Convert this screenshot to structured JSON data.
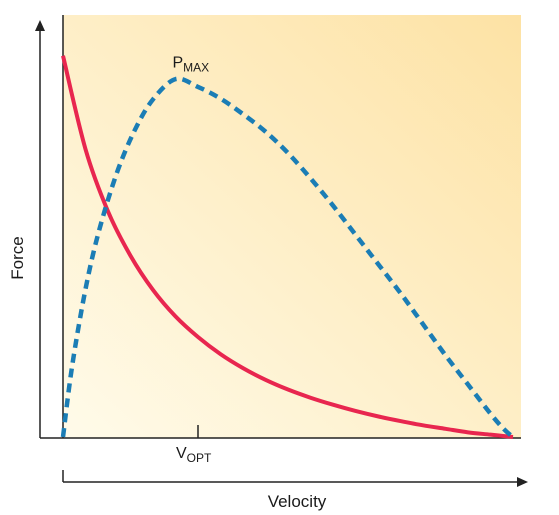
{
  "chart_data": {
    "type": "line",
    "xlabel": "Velocity",
    "ylabel": "Force",
    "x_ticks": [
      {
        "value": 0.3,
        "label_main": "V",
        "label_sub": "OPT"
      }
    ],
    "xlim": [
      0,
      1
    ],
    "ylim": [
      0,
      1
    ],
    "grid": false,
    "series": [
      {
        "style": "solid",
        "color": "#e8264f",
        "x": [
          0,
          0.05,
          0.1,
          0.15,
          0.2,
          0.25,
          0.3,
          0.35,
          0.4,
          0.45,
          0.5,
          0.55,
          0.6,
          0.65,
          0.7,
          0.75,
          0.8,
          0.85,
          0.9,
          0.95,
          1.0
        ],
        "y": [
          0.98,
          0.74,
          0.58,
          0.466,
          0.378,
          0.31,
          0.257,
          0.213,
          0.177,
          0.147,
          0.122,
          0.101,
          0.083,
          0.067,
          0.053,
          0.041,
          0.03,
          0.021,
          0.012,
          0.006,
          0.0
        ]
      },
      {
        "style": "dashed",
        "color": "#1b7db5",
        "x": [
          0,
          0.02,
          0.05,
          0.08,
          0.12,
          0.16,
          0.2,
          0.25,
          0.3,
          0.35,
          0.4,
          0.45,
          0.5,
          0.55,
          0.6,
          0.65,
          0.7,
          0.75,
          0.8,
          0.85,
          0.9,
          0.95,
          0.98,
          1.0
        ],
        "y": [
          0.0,
          0.18,
          0.38,
          0.53,
          0.68,
          0.79,
          0.868,
          0.92,
          0.9,
          0.87,
          0.83,
          0.785,
          0.73,
          0.665,
          0.595,
          0.52,
          0.445,
          0.37,
          0.29,
          0.21,
          0.135,
          0.06,
          0.02,
          0.0
        ]
      }
    ],
    "annotations": [
      {
        "text_main": "P",
        "text_sub": "MAX",
        "x": 0.27,
        "y": 0.935
      }
    ],
    "background_gradient": [
      "#fffbea",
      "#fde2a4"
    ]
  }
}
